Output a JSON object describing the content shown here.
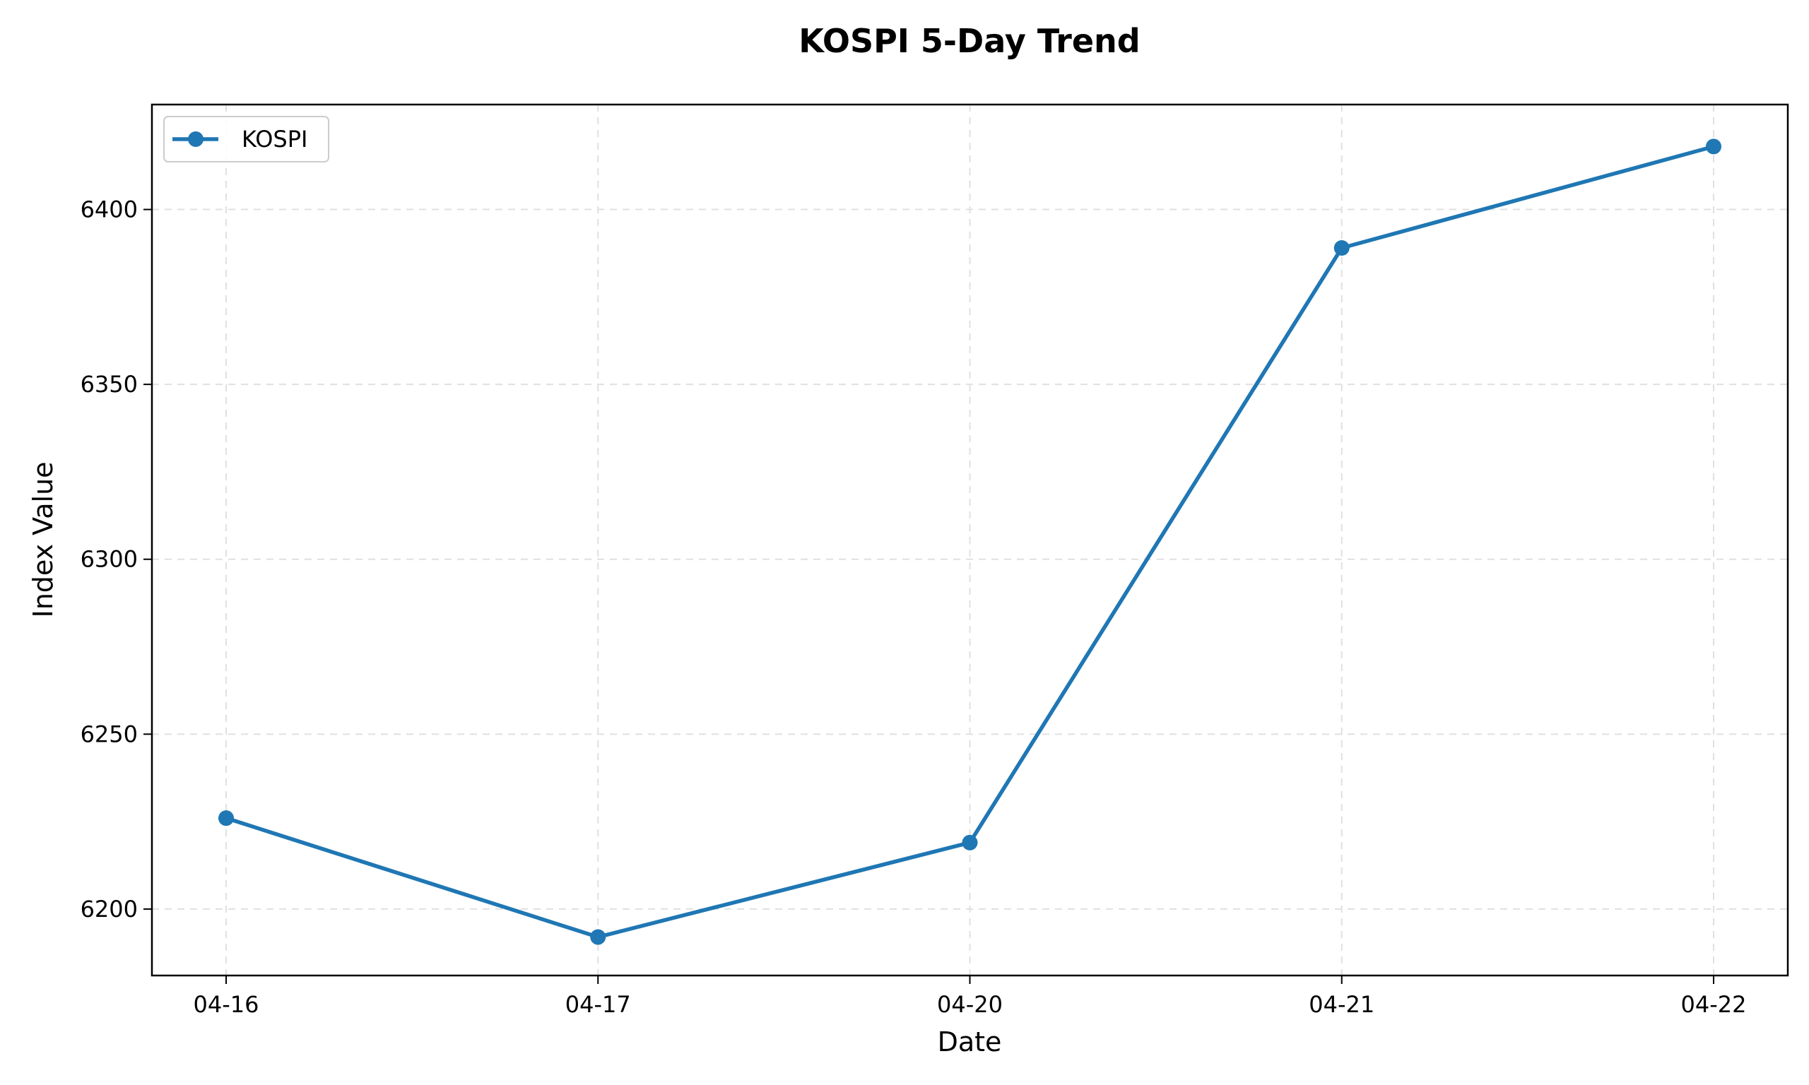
{
  "chart_data": {
    "type": "line",
    "title": "KOSPI 5-Day Trend",
    "xlabel": "Date",
    "ylabel": "Index Value",
    "categories": [
      "04-16",
      "04-17",
      "04-20",
      "04-21",
      "04-22"
    ],
    "series": [
      {
        "name": "KOSPI",
        "color": "#1f77b4",
        "values": [
          6226,
          6192,
          6219,
          6389,
          6418
        ]
      }
    ],
    "ylim": [
      6181,
      6430
    ],
    "yticks": [
      6200,
      6250,
      6300,
      6350,
      6400
    ],
    "grid": true,
    "legend_position": "top-left"
  }
}
